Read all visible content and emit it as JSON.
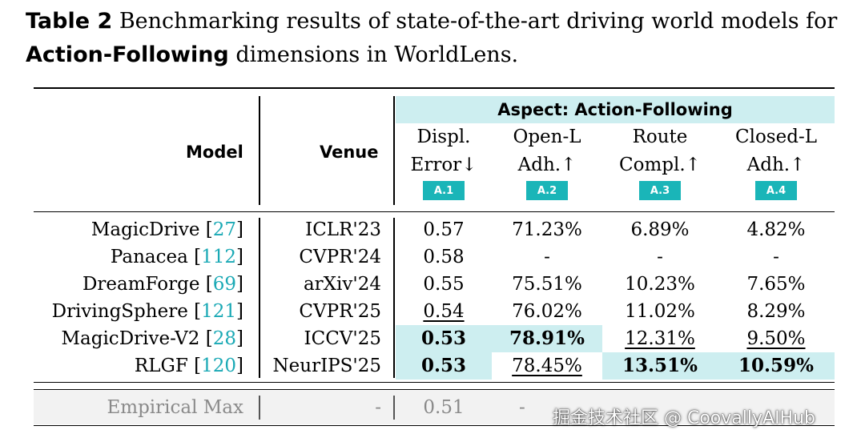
{
  "caption": {
    "tag": "Table 2",
    "text_before": "Benchmarking results of state-of-the-art driving world models for ",
    "bold_phrase": "Action-Following",
    "text_after": " dimensions in WorldLens."
  },
  "header": {
    "model_label": "Model",
    "venue_label": "Venue",
    "aspect_label": "Aspect: Action-Following",
    "columns": [
      {
        "line1": "Displ.",
        "line2": "Error↓",
        "badge": "A.1"
      },
      {
        "line1": "Open-L",
        "line2": "Adh.↑",
        "badge": "A.2"
      },
      {
        "line1": "Route",
        "line2": "Compl.↑",
        "badge": "A.3"
      },
      {
        "line1": "Closed-L",
        "line2": "Adh.↑",
        "badge": "A.4"
      }
    ]
  },
  "rows": [
    {
      "model": "MagicDrive",
      "ref": "27",
      "venue": "ICLR'23",
      "values": [
        "0.57",
        "71.23%",
        "6.89%",
        "4.82%"
      ]
    },
    {
      "model": "Panacea",
      "ref": "112",
      "venue": "CVPR'24",
      "values": [
        "0.58",
        "-",
        "-",
        "-"
      ]
    },
    {
      "model": "DreamForge",
      "ref": "69",
      "venue": "arXiv'24",
      "values": [
        "0.55",
        "75.51%",
        "10.23%",
        "7.65%"
      ]
    },
    {
      "model": "DrivingSphere",
      "ref": "121",
      "venue": "CVPR'25",
      "values": [
        "0.54",
        "76.02%",
        "11.02%",
        "8.29%"
      ]
    },
    {
      "model": "MagicDrive-V2",
      "ref": "28",
      "venue": "ICCV'25",
      "values": [
        "0.53",
        "78.91%",
        "12.31%",
        "9.50%"
      ]
    },
    {
      "model": "RLGF",
      "ref": "120",
      "venue": "NeurIPS'25",
      "values": [
        "0.53",
        "78.45%",
        "13.51%",
        "10.59%"
      ]
    }
  ],
  "empirical": {
    "model": "Empirical Max",
    "venue": "-",
    "values": [
      "0.51",
      "-"
    ]
  },
  "watermark": "掘金技术社区 @ CoovallyAIHub",
  "colors": {
    "highlight": "#cdeef0",
    "badge": "#1ab5b8",
    "ref": "#1aa9b5"
  }
}
